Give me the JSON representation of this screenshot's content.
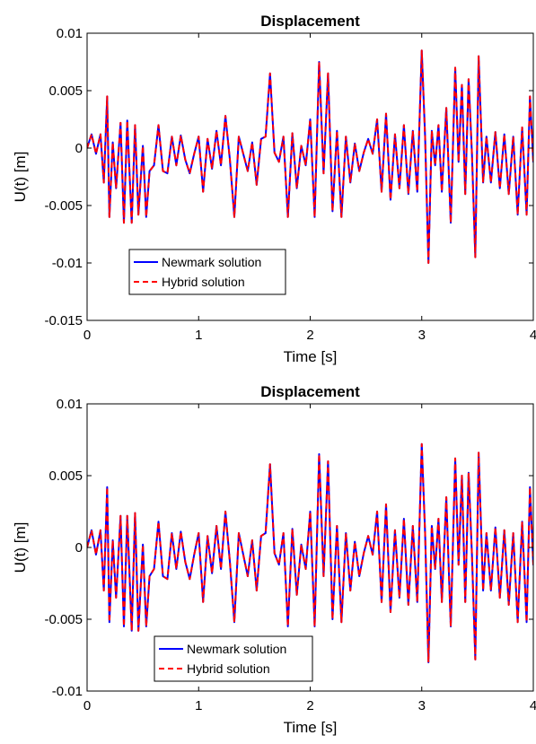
{
  "figure": {
    "background": "#ffffff"
  },
  "chart_data": [
    {
      "type": "line",
      "title": "Displacement",
      "xlabel": "Time [s]",
      "ylabel": "U(t) [m]",
      "xlim": [
        0,
        4
      ],
      "ylim": [
        -0.015,
        0.01
      ],
      "xticks": [
        0,
        1,
        2,
        3,
        4
      ],
      "xtick_labels": [
        "0",
        "1",
        "2",
        "3",
        "4"
      ],
      "yticks": [
        0.01,
        0.005,
        0,
        -0.005,
        -0.01,
        -0.015
      ],
      "ytick_labels": [
        "0.01",
        "0.005",
        "0",
        "-0.005",
        "-0.01",
        "-0.015"
      ],
      "grid": false,
      "legend_position": "lower-left",
      "series": [
        {
          "name": "Newmark solution",
          "color": "#0000ff",
          "style": "solid",
          "x": [
            0,
            0.04,
            0.08,
            0.12,
            0.15,
            0.18,
            0.2,
            0.23,
            0.26,
            0.3,
            0.33,
            0.36,
            0.4,
            0.43,
            0.46,
            0.5,
            0.53,
            0.56,
            0.6,
            0.64,
            0.68,
            0.72,
            0.76,
            0.8,
            0.84,
            0.88,
            0.92,
            0.96,
            1.0,
            1.04,
            1.08,
            1.12,
            1.16,
            1.2,
            1.24,
            1.28,
            1.32,
            1.36,
            1.4,
            1.44,
            1.48,
            1.52,
            1.56,
            1.6,
            1.64,
            1.68,
            1.72,
            1.76,
            1.8,
            1.84,
            1.88,
            1.92,
            1.96,
            2.0,
            2.04,
            2.08,
            2.12,
            2.16,
            2.2,
            2.24,
            2.28,
            2.32,
            2.36,
            2.4,
            2.44,
            2.48,
            2.52,
            2.56,
            2.6,
            2.64,
            2.68,
            2.72,
            2.76,
            2.8,
            2.84,
            2.88,
            2.92,
            2.96,
            3.0,
            3.03,
            3.06,
            3.09,
            3.12,
            3.15,
            3.18,
            3.22,
            3.26,
            3.3,
            3.33,
            3.36,
            3.39,
            3.42,
            3.45,
            3.48,
            3.51,
            3.55,
            3.58,
            3.62,
            3.66,
            3.7,
            3.74,
            3.78,
            3.82,
            3.86,
            3.9,
            3.94,
            3.97,
            4.0
          ],
          "y": [
            0,
            0.0012,
            -0.0005,
            0.0012,
            -0.003,
            0.0045,
            -0.006,
            0.0005,
            -0.0035,
            0.0022,
            -0.0065,
            0.0024,
            -0.0065,
            0.002,
            -0.0058,
            0.0002,
            -0.006,
            -0.002,
            -0.0015,
            0.002,
            -0.002,
            -0.0022,
            0.001,
            -0.0015,
            0.0011,
            -0.001,
            -0.0022,
            -0.0005,
            0.001,
            -0.0038,
            0.0008,
            -0.0018,
            0.0015,
            -0.0015,
            0.0028,
            -0.001,
            -0.006,
            0.001,
            -0.0005,
            -0.002,
            0.0005,
            -0.0032,
            0.0008,
            0.001,
            0.0065,
            -0.0004,
            -0.0012,
            0.001,
            -0.006,
            0.0013,
            -0.0035,
            0.0002,
            -0.0015,
            0.0025,
            -0.006,
            0.0075,
            -0.0022,
            0.0065,
            -0.0055,
            0.0015,
            -0.006,
            0.001,
            -0.003,
            0.0004,
            -0.002,
            -0.0004,
            0.0008,
            -0.0005,
            0.0025,
            -0.0038,
            0.003,
            -0.0045,
            0.0012,
            -0.0035,
            0.002,
            -0.004,
            0.0015,
            -0.0038,
            0.0085,
            0.001,
            -0.01,
            0.0015,
            -0.0015,
            0.002,
            -0.0038,
            0.0035,
            -0.0065,
            0.007,
            -0.0012,
            0.0055,
            -0.004,
            0.006,
            -0.0005,
            -0.0095,
            0.008,
            -0.003,
            0.001,
            -0.003,
            0.0014,
            -0.0035,
            0.0012,
            -0.004,
            0.001,
            -0.0058,
            0.0018,
            -0.0058,
            0.0045,
            -0.0012
          ]
        },
        {
          "name": "Hybrid solution",
          "color": "#ff0000",
          "style": "dashed",
          "x": [
            0,
            0.04,
            0.08,
            0.12,
            0.15,
            0.18,
            0.2,
            0.23,
            0.26,
            0.3,
            0.33,
            0.36,
            0.4,
            0.43,
            0.46,
            0.5,
            0.53,
            0.56,
            0.6,
            0.64,
            0.68,
            0.72,
            0.76,
            0.8,
            0.84,
            0.88,
            0.92,
            0.96,
            1.0,
            1.04,
            1.08,
            1.12,
            1.16,
            1.2,
            1.24,
            1.28,
            1.32,
            1.36,
            1.4,
            1.44,
            1.48,
            1.52,
            1.56,
            1.6,
            1.64,
            1.68,
            1.72,
            1.76,
            1.8,
            1.84,
            1.88,
            1.92,
            1.96,
            2.0,
            2.04,
            2.08,
            2.12,
            2.16,
            2.2,
            2.24,
            2.28,
            2.32,
            2.36,
            2.4,
            2.44,
            2.48,
            2.52,
            2.56,
            2.6,
            2.64,
            2.68,
            2.72,
            2.76,
            2.8,
            2.84,
            2.88,
            2.92,
            2.96,
            3.0,
            3.03,
            3.06,
            3.09,
            3.12,
            3.15,
            3.18,
            3.22,
            3.26,
            3.3,
            3.33,
            3.36,
            3.39,
            3.42,
            3.45,
            3.48,
            3.51,
            3.55,
            3.58,
            3.62,
            3.66,
            3.7,
            3.74,
            3.78,
            3.82,
            3.86,
            3.9,
            3.94,
            3.97,
            4.0
          ],
          "y": [
            0,
            0.0012,
            -0.0005,
            0.0012,
            -0.003,
            0.0045,
            -0.006,
            0.0005,
            -0.0035,
            0.0022,
            -0.0065,
            0.0024,
            -0.0065,
            0.002,
            -0.0058,
            0.0002,
            -0.006,
            -0.002,
            -0.0015,
            0.002,
            -0.002,
            -0.0022,
            0.001,
            -0.0015,
            0.0011,
            -0.001,
            -0.0022,
            -0.0005,
            0.001,
            -0.0038,
            0.0008,
            -0.0018,
            0.0015,
            -0.0015,
            0.0028,
            -0.001,
            -0.006,
            0.001,
            -0.0005,
            -0.002,
            0.0005,
            -0.0032,
            0.0008,
            0.001,
            0.0065,
            -0.0004,
            -0.0012,
            0.001,
            -0.006,
            0.0013,
            -0.0035,
            0.0002,
            -0.0015,
            0.0025,
            -0.006,
            0.0075,
            -0.0022,
            0.0065,
            -0.0055,
            0.0015,
            -0.006,
            0.001,
            -0.003,
            0.0004,
            -0.002,
            -0.0004,
            0.0008,
            -0.0005,
            0.0025,
            -0.0038,
            0.003,
            -0.0045,
            0.0012,
            -0.0035,
            0.002,
            -0.004,
            0.0015,
            -0.0038,
            0.0085,
            0.001,
            -0.01,
            0.0015,
            -0.0015,
            0.002,
            -0.0038,
            0.0035,
            -0.0065,
            0.007,
            -0.0012,
            0.0055,
            -0.004,
            0.006,
            -0.0005,
            -0.0095,
            0.008,
            -0.003,
            0.001,
            -0.003,
            0.0014,
            -0.0035,
            0.0012,
            -0.004,
            0.001,
            -0.0058,
            0.0018,
            -0.0058,
            0.0045,
            -0.0012
          ]
        }
      ]
    },
    {
      "type": "line",
      "title": "Displacement",
      "xlabel": "Time [s]",
      "ylabel": "U(t) [m]",
      "xlim": [
        0,
        4
      ],
      "ylim": [
        -0.01,
        0.01
      ],
      "xticks": [
        0,
        1,
        2,
        3,
        4
      ],
      "xtick_labels": [
        "0",
        "1",
        "2",
        "3",
        "4"
      ],
      "yticks": [
        0.01,
        0.005,
        0,
        -0.005,
        -0.01
      ],
      "ytick_labels": [
        "0.01",
        "0.005",
        "0",
        "-0.005",
        "-0.01"
      ],
      "grid": false,
      "legend_position": "lower-left",
      "series": [
        {
          "name": "Newmark solution",
          "color": "#0000ff",
          "style": "solid",
          "x": [
            0,
            0.04,
            0.08,
            0.12,
            0.15,
            0.18,
            0.2,
            0.23,
            0.26,
            0.3,
            0.33,
            0.36,
            0.4,
            0.43,
            0.46,
            0.5,
            0.53,
            0.56,
            0.6,
            0.64,
            0.68,
            0.72,
            0.76,
            0.8,
            0.84,
            0.88,
            0.92,
            0.96,
            1.0,
            1.04,
            1.08,
            1.12,
            1.16,
            1.2,
            1.24,
            1.28,
            1.32,
            1.36,
            1.4,
            1.44,
            1.48,
            1.52,
            1.56,
            1.6,
            1.64,
            1.68,
            1.72,
            1.76,
            1.8,
            1.84,
            1.88,
            1.92,
            1.96,
            2.0,
            2.04,
            2.08,
            2.12,
            2.16,
            2.2,
            2.24,
            2.28,
            2.32,
            2.36,
            2.4,
            2.44,
            2.48,
            2.52,
            2.56,
            2.6,
            2.64,
            2.68,
            2.72,
            2.76,
            2.8,
            2.84,
            2.88,
            2.92,
            2.96,
            3.0,
            3.03,
            3.06,
            3.09,
            3.12,
            3.15,
            3.18,
            3.22,
            3.26,
            3.3,
            3.33,
            3.36,
            3.39,
            3.42,
            3.45,
            3.48,
            3.51,
            3.55,
            3.58,
            3.62,
            3.66,
            3.7,
            3.74,
            3.78,
            3.82,
            3.86,
            3.9,
            3.94,
            3.97,
            4.0
          ],
          "y": [
            0,
            0.0012,
            -0.0005,
            0.0012,
            -0.003,
            0.0042,
            -0.0052,
            0.0005,
            -0.0035,
            0.0022,
            -0.0055,
            0.0022,
            -0.0058,
            0.0024,
            -0.0058,
            0.0002,
            -0.0055,
            -0.002,
            -0.0015,
            0.0018,
            -0.002,
            -0.0022,
            0.001,
            -0.0015,
            0.0011,
            -0.001,
            -0.0022,
            -0.0005,
            0.001,
            -0.0038,
            0.0008,
            -0.0018,
            0.0015,
            -0.0015,
            0.0025,
            -0.001,
            -0.0052,
            0.001,
            -0.0005,
            -0.002,
            0.0005,
            -0.003,
            0.0008,
            0.001,
            0.0058,
            -0.0004,
            -0.0012,
            0.001,
            -0.0055,
            0.0013,
            -0.0033,
            0.0002,
            -0.0015,
            0.0025,
            -0.0055,
            0.0065,
            -0.002,
            0.006,
            -0.005,
            0.0015,
            -0.0052,
            0.001,
            -0.003,
            0.0004,
            -0.002,
            -0.0004,
            0.0008,
            -0.0005,
            0.0025,
            -0.0038,
            0.003,
            -0.0045,
            0.0012,
            -0.0035,
            0.002,
            -0.004,
            0.0015,
            -0.0038,
            0.0072,
            0.001,
            -0.008,
            0.0015,
            -0.0015,
            0.002,
            -0.0038,
            0.0035,
            -0.0055,
            0.0062,
            -0.0012,
            0.005,
            -0.0038,
            0.0052,
            -0.0005,
            -0.0078,
            0.0066,
            -0.003,
            0.001,
            -0.003,
            0.0014,
            -0.0035,
            0.0012,
            -0.004,
            0.001,
            -0.0052,
            0.0018,
            -0.0052,
            0.0042,
            -0.0012
          ]
        },
        {
          "name": "Hybrid solution",
          "color": "#ff0000",
          "style": "dashed",
          "x": [
            0,
            0.04,
            0.08,
            0.12,
            0.15,
            0.18,
            0.2,
            0.23,
            0.26,
            0.3,
            0.33,
            0.36,
            0.4,
            0.43,
            0.46,
            0.5,
            0.53,
            0.56,
            0.6,
            0.64,
            0.68,
            0.72,
            0.76,
            0.8,
            0.84,
            0.88,
            0.92,
            0.96,
            1.0,
            1.04,
            1.08,
            1.12,
            1.16,
            1.2,
            1.24,
            1.28,
            1.32,
            1.36,
            1.4,
            1.44,
            1.48,
            1.52,
            1.56,
            1.6,
            1.64,
            1.68,
            1.72,
            1.76,
            1.8,
            1.84,
            1.88,
            1.92,
            1.96,
            2.0,
            2.04,
            2.08,
            2.12,
            2.16,
            2.2,
            2.24,
            2.28,
            2.32,
            2.36,
            2.4,
            2.44,
            2.48,
            2.52,
            2.56,
            2.6,
            2.64,
            2.68,
            2.72,
            2.76,
            2.8,
            2.84,
            2.88,
            2.92,
            2.96,
            3.0,
            3.03,
            3.06,
            3.09,
            3.12,
            3.15,
            3.18,
            3.22,
            3.26,
            3.3,
            3.33,
            3.36,
            3.39,
            3.42,
            3.45,
            3.48,
            3.51,
            3.55,
            3.58,
            3.62,
            3.66,
            3.7,
            3.74,
            3.78,
            3.82,
            3.86,
            3.9,
            3.94,
            3.97,
            4.0
          ],
          "y": [
            0,
            0.0012,
            -0.0005,
            0.0012,
            -0.003,
            0.0042,
            -0.0052,
            0.0005,
            -0.0035,
            0.0022,
            -0.0055,
            0.0022,
            -0.0058,
            0.0024,
            -0.0058,
            0.0002,
            -0.0055,
            -0.002,
            -0.0015,
            0.0018,
            -0.002,
            -0.0022,
            0.001,
            -0.0015,
            0.0011,
            -0.001,
            -0.0022,
            -0.0005,
            0.001,
            -0.0038,
            0.0008,
            -0.0018,
            0.0015,
            -0.0015,
            0.0025,
            -0.001,
            -0.0052,
            0.001,
            -0.0005,
            -0.002,
            0.0005,
            -0.003,
            0.0008,
            0.001,
            0.0058,
            -0.0004,
            -0.0012,
            0.001,
            -0.0055,
            0.0013,
            -0.0033,
            0.0002,
            -0.0015,
            0.0025,
            -0.0055,
            0.0065,
            -0.002,
            0.006,
            -0.005,
            0.0015,
            -0.0052,
            0.001,
            -0.003,
            0.0004,
            -0.002,
            -0.0004,
            0.0008,
            -0.0005,
            0.0025,
            -0.0038,
            0.003,
            -0.0045,
            0.0012,
            -0.0035,
            0.002,
            -0.004,
            0.0015,
            -0.0038,
            0.0072,
            0.001,
            -0.008,
            0.0015,
            -0.0015,
            0.002,
            -0.0038,
            0.0035,
            -0.0055,
            0.0062,
            -0.0012,
            0.005,
            -0.0038,
            0.0052,
            -0.0005,
            -0.0078,
            0.0066,
            -0.003,
            0.001,
            -0.003,
            0.0014,
            -0.0035,
            0.0012,
            -0.004,
            0.001,
            -0.0052,
            0.0018,
            -0.0052,
            0.0042,
            -0.0012
          ]
        }
      ]
    }
  ]
}
